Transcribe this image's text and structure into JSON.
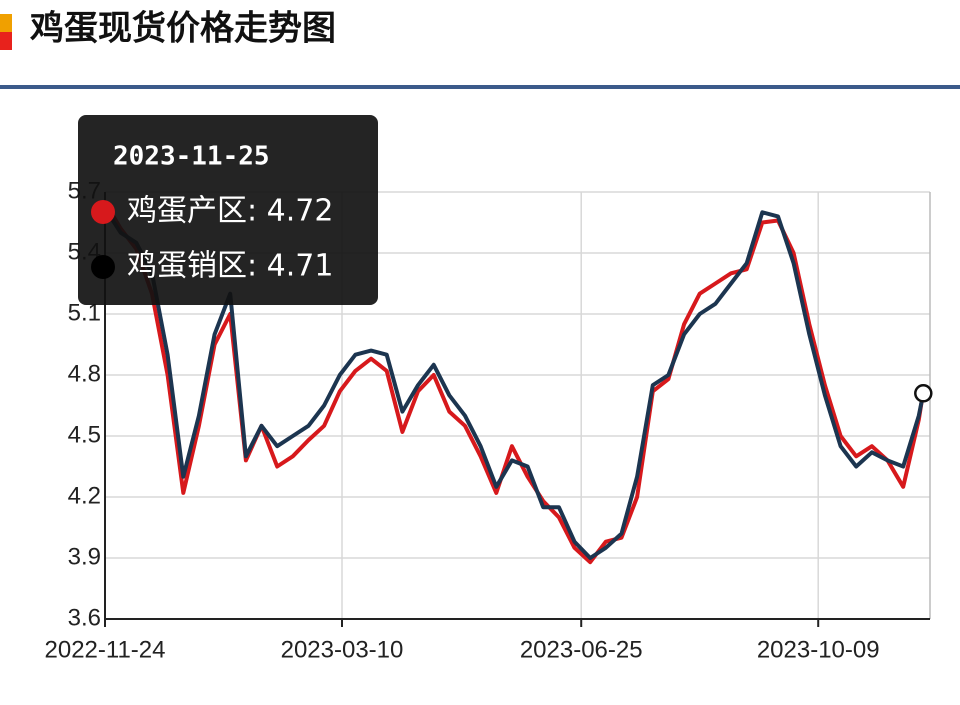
{
  "chart_data": {
    "type": "line",
    "title": "鸡蛋现货价格走势图",
    "x": [
      "2022-11-24",
      "2022-12-01",
      "2022-12-08",
      "2022-12-15",
      "2022-12-22",
      "2022-12-29",
      "2023-01-05",
      "2023-01-12",
      "2023-01-19",
      "2023-01-26",
      "2023-02-02",
      "2023-02-09",
      "2023-02-16",
      "2023-02-23",
      "2023-03-02",
      "2023-03-09",
      "2023-03-16",
      "2023-03-23",
      "2023-03-30",
      "2023-04-06",
      "2023-04-13",
      "2023-04-20",
      "2023-04-27",
      "2023-05-04",
      "2023-05-11",
      "2023-05-18",
      "2023-05-25",
      "2023-06-01",
      "2023-06-08",
      "2023-06-15",
      "2023-06-22",
      "2023-06-29",
      "2023-07-06",
      "2023-07-13",
      "2023-07-20",
      "2023-07-27",
      "2023-08-03",
      "2023-08-10",
      "2023-08-17",
      "2023-08-24",
      "2023-08-31",
      "2023-09-07",
      "2023-09-14",
      "2023-09-21",
      "2023-09-28",
      "2023-10-05",
      "2023-10-12",
      "2023-10-19",
      "2023-10-26",
      "2023-11-02",
      "2023-11-09",
      "2023-11-16",
      "2023-11-23",
      "2023-11-25"
    ],
    "series": [
      {
        "name": "鸡蛋产区",
        "color": "#d7191c",
        "values": [
          5.65,
          5.52,
          5.42,
          5.2,
          4.8,
          4.22,
          4.55,
          4.95,
          5.1,
          4.38,
          4.55,
          4.35,
          4.4,
          4.48,
          4.55,
          4.72,
          4.82,
          4.88,
          4.82,
          4.52,
          4.72,
          4.8,
          4.62,
          4.55,
          4.4,
          4.22,
          4.45,
          4.3,
          4.18,
          4.1,
          3.95,
          3.88,
          3.98,
          4.0,
          4.2,
          4.72,
          4.78,
          5.05,
          5.2,
          5.25,
          5.3,
          5.32,
          5.55,
          5.56,
          5.4,
          5.05,
          4.75,
          4.5,
          4.4,
          4.45,
          4.38,
          4.25,
          4.58,
          4.72
        ]
      },
      {
        "name": "鸡蛋销区",
        "color": "#1c3550",
        "values": [
          5.62,
          5.5,
          5.45,
          5.3,
          4.9,
          4.3,
          4.6,
          5.0,
          5.2,
          4.4,
          4.55,
          4.45,
          4.5,
          4.55,
          4.65,
          4.8,
          4.9,
          4.92,
          4.9,
          4.62,
          4.75,
          4.85,
          4.7,
          4.6,
          4.45,
          4.25,
          4.38,
          4.35,
          4.15,
          4.15,
          3.98,
          3.9,
          3.95,
          4.02,
          4.3,
          4.75,
          4.8,
          5.0,
          5.1,
          5.15,
          5.25,
          5.35,
          5.6,
          5.58,
          5.35,
          5.0,
          4.7,
          4.45,
          4.35,
          4.42,
          4.38,
          4.35,
          4.6,
          4.71
        ]
      }
    ],
    "xlim": [
      "2022-11-24",
      "2023-11-28"
    ],
    "xticks": [
      "2022-11-24",
      "2023-03-10",
      "2023-06-25",
      "2023-10-09"
    ],
    "ylim": [
      3.6,
      5.7
    ],
    "yticks": [
      3.6,
      3.9,
      4.2,
      4.5,
      4.8,
      5.1,
      5.4,
      5.7
    ],
    "grid": true,
    "tooltip": {
      "title": "2023-11-25",
      "items": [
        "鸡蛋产区: 4.72",
        "鸡蛋销区: 4.71"
      ]
    }
  }
}
